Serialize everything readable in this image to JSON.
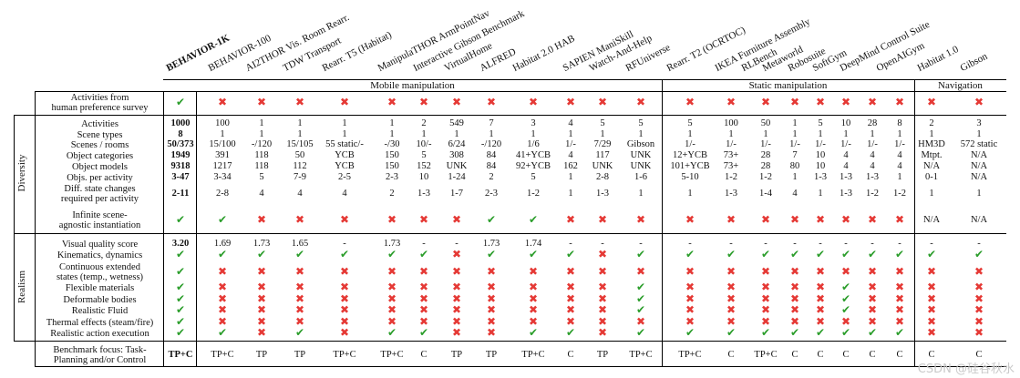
{
  "columns": [
    "BEHAVIOR-1K",
    "BEHAVIOR-100",
    "AI2THOR Vis. Room Rearr.",
    "TDW Transport",
    "Rearr. T5 (Habitat)",
    "ManipulaTHOR ArmPointNav",
    "Interactive Gibson Benchmark",
    "VirtualHome",
    "ALFRED",
    "Habitat 2.0 HAB",
    "SAPIEN ManiSkill",
    "Watch-And-Help",
    "RFUniverse",
    "Rearr. T2 (OCRTOC)",
    "IKEA Furniture Assembly",
    "RLBench",
    "Metaworld",
    "Robosuite",
    "SoftGym",
    "DeepMind Control Suite",
    "OpenAIGym",
    "Habitat 1.0",
    "Gibson"
  ],
  "groups": [
    "Mobile manipulation",
    "Static manipulation",
    "Navigation"
  ],
  "sections": [
    "Diversity",
    "Realism"
  ],
  "rows": [
    {
      "label": [
        "Activities from",
        "human preference survey"
      ],
      "values": [
        "ck",
        "cx",
        "cx",
        "cx",
        "cx",
        "cx",
        "cx",
        "cx",
        "cx",
        "cx",
        "cx",
        "cx",
        "cx",
        "cx",
        "cx",
        "cx",
        "cx",
        "cx",
        "cx",
        "cx",
        "cx",
        "cx",
        "cx"
      ]
    },
    {
      "label": [
        "Activities"
      ],
      "values": [
        "1000",
        "100",
        "1",
        "1",
        "1",
        "1",
        "2",
        "549",
        "7",
        "3",
        "4",
        "5",
        "5",
        "5",
        "100",
        "50",
        "1",
        "5",
        "10",
        "28",
        "8",
        "2",
        "3"
      ]
    },
    {
      "label": [
        "Scene types"
      ],
      "values": [
        "8",
        "1",
        "1",
        "1",
        "1",
        "1",
        "1",
        "1",
        "1",
        "1",
        "1",
        "1",
        "1",
        "1",
        "1",
        "1",
        "1",
        "1",
        "1",
        "1",
        "1",
        "1",
        "1"
      ]
    },
    {
      "label": [
        "Scenes / rooms"
      ],
      "values": [
        "50/373",
        "15/100",
        "-/120",
        "15/105",
        "55 static/-",
        "-/30",
        "10/-",
        "6/24",
        "-/120",
        "1/6",
        "1/-",
        "7/29",
        "Gibson",
        "1/-",
        "1/-",
        "1/-",
        "1/-",
        "1/-",
        "1/-",
        "1/-",
        "1/-",
        "HM3D",
        "572 static"
      ]
    },
    {
      "label": [
        "Object categories"
      ],
      "values": [
        "1949",
        "391",
        "118",
        "50",
        "YCB",
        "150",
        "5",
        "308",
        "84",
        "41+YCB",
        "4",
        "117",
        "UNK",
        "12+YCB",
        "73+",
        "28",
        "7",
        "10",
        "4",
        "4",
        "4",
        "Mtpt.",
        "N/A"
      ]
    },
    {
      "label": [
        "Object models"
      ],
      "values": [
        "9318",
        "1217",
        "118",
        "112",
        "YCB",
        "150",
        "152",
        "UNK",
        "84",
        "92+YCB",
        "162",
        "UNK",
        "UNK",
        "101+YCB",
        "73+",
        "28",
        "80",
        "10",
        "4",
        "4",
        "4",
        "N/A",
        "N/A"
      ]
    },
    {
      "label": [
        "Objs. per activity"
      ],
      "values": [
        "3-47",
        "3-34",
        "5",
        "7-9",
        "2-5",
        "2-3",
        "10",
        "1-24",
        "2",
        "5",
        "1",
        "2-8",
        "1-6",
        "5-10",
        "1-2",
        "1-2",
        "1",
        "1-3",
        "1-3",
        "1-3",
        "1",
        "0-1",
        "N/A"
      ]
    },
    {
      "label": [
        "Diff. state changes",
        "required per activity"
      ],
      "values": [
        "2-11",
        "2-8",
        "4",
        "4",
        "4",
        "2",
        "1-3",
        "1-7",
        "2-3",
        "1-2",
        "1",
        "1-3",
        "1",
        "1",
        "1-3",
        "1-4",
        "4",
        "1",
        "1-3",
        "1-2",
        "1-2",
        "1",
        "1"
      ]
    },
    {
      "label": [
        "Infinite scene-",
        "agnostic instantiation"
      ],
      "values": [
        "ck",
        "ck",
        "cx",
        "cx",
        "cx",
        "cx",
        "cx",
        "cx",
        "ck",
        "ck",
        "cx",
        "cx",
        "cx",
        "cx",
        "cx",
        "cx",
        "cx",
        "cx",
        "cx",
        "cx",
        "cx",
        "N/A",
        "N/A"
      ]
    },
    {
      "label": [
        "Visual quality score"
      ],
      "values": [
        "3.20",
        "1.69",
        "1.73",
        "1.65",
        "-",
        "1.73",
        "-",
        "-",
        "1.73",
        "1.74",
        "-",
        "-",
        "-",
        "-",
        "-",
        "-",
        "-",
        "-",
        "-",
        "-",
        "-",
        "-",
        "-"
      ]
    },
    {
      "label": [
        "Kinematics, dynamics"
      ],
      "values": [
        "ck",
        "ck",
        "ck",
        "ck",
        "ck",
        "ck",
        "ck",
        "cx",
        "ck",
        "ck",
        "ck",
        "cx",
        "ck",
        "ck",
        "ck",
        "ck",
        "ck",
        "ck",
        "ck",
        "ck",
        "ck",
        "ck",
        "ck"
      ]
    },
    {
      "label": [
        "Continuous extended",
        "states (temp., wetness)"
      ],
      "values": [
        "ck",
        "cx",
        "cx",
        "cx",
        "cx",
        "cx",
        "cx",
        "cx",
        "cx",
        "cx",
        "cx",
        "cx",
        "cx",
        "cx",
        "cx",
        "cx",
        "cx",
        "cx",
        "cx",
        "cx",
        "cx",
        "cx",
        "cx"
      ]
    },
    {
      "label": [
        "Flexible materials"
      ],
      "values": [
        "ck",
        "cx",
        "cx",
        "cx",
        "cx",
        "cx",
        "cx",
        "cx",
        "cx",
        "cx",
        "cx",
        "cx",
        "ck",
        "cx",
        "cx",
        "cx",
        "cx",
        "cx",
        "ck",
        "cx",
        "cx",
        "cx",
        "cx"
      ]
    },
    {
      "label": [
        "Deformable bodies"
      ],
      "values": [
        "ck",
        "cx",
        "cx",
        "cx",
        "cx",
        "cx",
        "cx",
        "cx",
        "cx",
        "cx",
        "cx",
        "cx",
        "ck",
        "cx",
        "cx",
        "cx",
        "cx",
        "cx",
        "ck",
        "cx",
        "cx",
        "cx",
        "cx"
      ]
    },
    {
      "label": [
        "Realistic Fluid"
      ],
      "values": [
        "ck",
        "cx",
        "cx",
        "cx",
        "cx",
        "cx",
        "cx",
        "cx",
        "cx",
        "cx",
        "cx",
        "cx",
        "ck",
        "cx",
        "cx",
        "cx",
        "cx",
        "cx",
        "ck",
        "cx",
        "cx",
        "cx",
        "cx"
      ]
    },
    {
      "label": [
        "Thermal effects (steam/fire)"
      ],
      "values": [
        "ck",
        "cx",
        "cx",
        "cx",
        "cx",
        "cx",
        "cx",
        "cx",
        "cx",
        "cx",
        "cx",
        "cx",
        "cx",
        "cx",
        "cx",
        "cx",
        "cx",
        "cx",
        "cx",
        "cx",
        "cx",
        "cx",
        "cx"
      ]
    },
    {
      "label": [
        "Realistic action execution"
      ],
      "values": [
        "ck",
        "ck",
        "cx",
        "ck",
        "cx",
        "ck",
        "ck",
        "cx",
        "cx",
        "ck",
        "ck",
        "cx",
        "ck",
        "ck",
        "ck",
        "ck",
        "ck",
        "ck",
        "ck",
        "ck",
        "ck",
        "cx",
        "cx"
      ]
    },
    {
      "label": [
        "Benchmark focus: Task-",
        "Planning and/or Control"
      ],
      "values": [
        "TP+C",
        "TP+C",
        "TP",
        "TP",
        "TP+C",
        "TP+C",
        "C",
        "TP",
        "TP",
        "TP+C",
        "C",
        "TP",
        "TP+C",
        "TP+C",
        "C",
        "TP+C",
        "C",
        "C",
        "C",
        "C",
        "C",
        "C",
        "C"
      ]
    }
  ],
  "watermark": "CSDN @硅谷秋水"
}
